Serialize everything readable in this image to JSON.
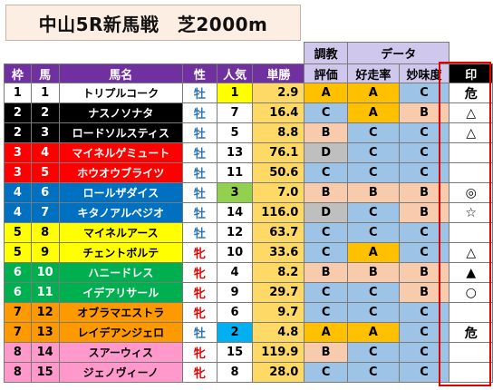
{
  "title": "中山5R新馬戦　芝2000m",
  "header": {
    "row1": {
      "chokyo_line1": "調教",
      "data": "データ"
    },
    "row2": {
      "waku": "枠",
      "uma": "馬",
      "bamei": "馬名",
      "sei": "性",
      "ninki": "人気",
      "tansho": "単勝",
      "chokyo_line2": "評価",
      "kousou": "好走率",
      "mimi": "妙味度",
      "shirushi": "印"
    }
  },
  "colors": {
    "waku": {
      "1": "#ffffff",
      "2": "#000000",
      "3": "#ff0000",
      "4": "#0070c0",
      "5": "#ffff00",
      "6": "#00b050",
      "7": "#ff9900",
      "8": "#ff99cc"
    },
    "waku_text": {
      "1": "#000000",
      "2": "#ffffff",
      "3": "#ffffff",
      "4": "#ffffff",
      "5": "#000000",
      "6": "#ffffff",
      "7": "#000000",
      "8": "#000000"
    },
    "ninki_top": "#ffff00",
    "ninki_3": "#92d050",
    "ninki_2": "#00b0f0",
    "odds": "#ffd966",
    "grade_A": "#ffc000",
    "grade_B": "#f8cbad",
    "grade_C": "#9dc3e6",
    "grade_D": "#bfbfbf"
  },
  "rows": [
    {
      "waku": "1",
      "uma": "1",
      "name": "トリプルコーク",
      "sex": "牡",
      "ninki": "1",
      "odds": "2.9",
      "chokyo": "A",
      "kousou": "A",
      "mimi": "C",
      "mark": "危"
    },
    {
      "waku": "2",
      "uma": "2",
      "name": "ナスノソナタ",
      "sex": "牡",
      "ninki": "7",
      "odds": "16.4",
      "chokyo": "C",
      "kousou": "A",
      "mimi": "B",
      "mark": "△"
    },
    {
      "waku": "2",
      "uma": "3",
      "name": "ロードソルスティス",
      "sex": "牡",
      "ninki": "5",
      "odds": "8.8",
      "chokyo": "B",
      "kousou": "C",
      "mimi": "C",
      "mark": "△"
    },
    {
      "waku": "3",
      "uma": "4",
      "name": "マイネルゲミュート",
      "sex": "牡",
      "ninki": "13",
      "odds": "76.1",
      "chokyo": "D",
      "kousou": "C",
      "mimi": "C",
      "mark": ""
    },
    {
      "waku": "3",
      "uma": "5",
      "name": "ホウオウブライツ",
      "sex": "牡",
      "ninki": "11",
      "odds": "50.6",
      "chokyo": "C",
      "kousou": "C",
      "mimi": "C",
      "mark": ""
    },
    {
      "waku": "4",
      "uma": "6",
      "name": "ロールザダイス",
      "sex": "牡",
      "ninki": "3",
      "odds": "7.0",
      "chokyo": "B",
      "kousou": "B",
      "mimi": "B",
      "mark": "◎"
    },
    {
      "waku": "4",
      "uma": "7",
      "name": "キタノアルペジオ",
      "sex": "牡",
      "ninki": "14",
      "odds": "116.0",
      "chokyo": "D",
      "kousou": "C",
      "mimi": "B",
      "mark": "☆"
    },
    {
      "waku": "5",
      "uma": "8",
      "name": "マイネルアース",
      "sex": "牡",
      "ninki": "12",
      "odds": "63.7",
      "chokyo": "C",
      "kousou": "C",
      "mimi": "C",
      "mark": ""
    },
    {
      "waku": "5",
      "uma": "9",
      "name": "チェントボルテ",
      "sex": "牝",
      "ninki": "10",
      "odds": "33.6",
      "chokyo": "C",
      "kousou": "A",
      "mimi": "C",
      "mark": "△"
    },
    {
      "waku": "6",
      "uma": "10",
      "name": "ハニードレス",
      "sex": "牝",
      "ninki": "4",
      "odds": "8.2",
      "chokyo": "B",
      "kousou": "B",
      "mimi": "B",
      "mark": "▲"
    },
    {
      "waku": "6",
      "uma": "11",
      "name": "イデアリサール",
      "sex": "牝",
      "ninki": "9",
      "odds": "29.7",
      "chokyo": "C",
      "kousou": "C",
      "mimi": "B",
      "mark": "○"
    },
    {
      "waku": "7",
      "uma": "12",
      "name": "オブラマエストラ",
      "sex": "牝",
      "ninki": "6",
      "odds": "9.7",
      "chokyo": "C",
      "kousou": "C",
      "mimi": "C",
      "mark": ""
    },
    {
      "waku": "7",
      "uma": "13",
      "name": "レイデアンジェロ",
      "sex": "牡",
      "ninki": "2",
      "odds": "4.8",
      "chokyo": "A",
      "kousou": "A",
      "mimi": "C",
      "mark": "危"
    },
    {
      "waku": "8",
      "uma": "14",
      "name": "スアーウィス",
      "sex": "牝",
      "ninki": "15",
      "odds": "119.9",
      "chokyo": "B",
      "kousou": "C",
      "mimi": "C",
      "mark": ""
    },
    {
      "waku": "8",
      "uma": "15",
      "name": "ジェノヴィーノ",
      "sex": "牝",
      "ninki": "8",
      "odds": "28.0",
      "chokyo": "C",
      "kousou": "C",
      "mimi": "C",
      "mark": ""
    }
  ]
}
